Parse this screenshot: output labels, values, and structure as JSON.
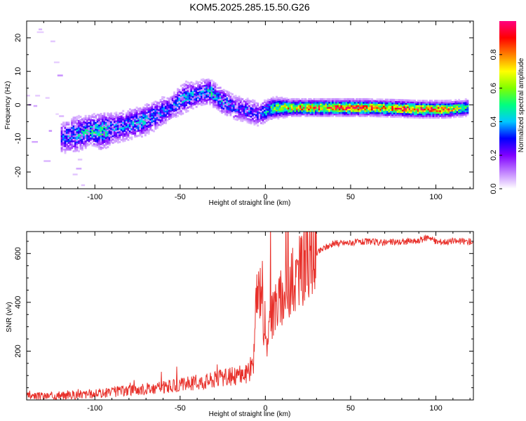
{
  "title": "KOM5.2025.285.15.50.G26",
  "chart_data": [
    {
      "type": "heatmap",
      "xlabel": "Height of straight line (km)",
      "ylabel": "Frequency (Hz)",
      "xlim": [
        -140,
        122
      ],
      "ylim": [
        -25,
        25
      ],
      "xticks": [
        -100,
        -50,
        0,
        50,
        100
      ],
      "yticks": [
        -20,
        -10,
        0,
        10,
        20
      ],
      "colorbar": {
        "label": "Normalized spectral amplitude",
        "range": [
          0,
          1
        ],
        "ticks": [
          "0.0",
          "0.2",
          "0.4",
          "0.6",
          "0.8"
        ],
        "tick_values": [
          0,
          0.2,
          0.4,
          0.6,
          0.8
        ],
        "colors": [
          "#ffffff",
          "#c080ff",
          "#8000ff",
          "#0000ff",
          "#00c8ff",
          "#00ff80",
          "#80ff00",
          "#ffff00",
          "#ff8000",
          "#ff0000",
          "#ff0080"
        ]
      },
      "ridge": [
        {
          "x": -120,
          "f": -10,
          "a": 0.35,
          "w": 6
        },
        {
          "x": -112,
          "f": -9,
          "a": 0.45,
          "w": 7
        },
        {
          "x": -104,
          "f": -8,
          "a": 0.5,
          "w": 6
        },
        {
          "x": -96,
          "f": -8,
          "a": 0.55,
          "w": 7
        },
        {
          "x": -88,
          "f": -7,
          "a": 0.4,
          "w": 6
        },
        {
          "x": -80,
          "f": -6,
          "a": 0.4,
          "w": 6
        },
        {
          "x": -72,
          "f": -5,
          "a": 0.45,
          "w": 6
        },
        {
          "x": -64,
          "f": -3,
          "a": 0.4,
          "w": 6
        },
        {
          "x": -56,
          "f": -1,
          "a": 0.35,
          "w": 5
        },
        {
          "x": -48,
          "f": 2,
          "a": 0.45,
          "w": 6
        },
        {
          "x": -40,
          "f": 3,
          "a": 0.4,
          "w": 5
        },
        {
          "x": -33,
          "f": 4,
          "a": 0.5,
          "w": 5
        },
        {
          "x": -26,
          "f": 1,
          "a": 0.45,
          "w": 5
        },
        {
          "x": -18,
          "f": -1,
          "a": 0.35,
          "w": 5
        },
        {
          "x": -10,
          "f": -2,
          "a": 0.35,
          "w": 5
        },
        {
          "x": -4,
          "f": -3,
          "a": 0.3,
          "w": 5
        },
        {
          "x": 4,
          "f": -1,
          "a": 0.6,
          "w": 4
        },
        {
          "x": 15,
          "f": -1,
          "a": 0.85,
          "w": 3
        },
        {
          "x": 30,
          "f": -1,
          "a": 0.9,
          "w": 3
        },
        {
          "x": 45,
          "f": -1,
          "a": 0.95,
          "w": 3
        },
        {
          "x": 60,
          "f": -1,
          "a": 0.9,
          "w": 3
        },
        {
          "x": 75,
          "f": -1.2,
          "a": 0.9,
          "w": 3
        },
        {
          "x": 90,
          "f": -1.5,
          "a": 0.95,
          "w": 3
        },
        {
          "x": 105,
          "f": -1.5,
          "a": 0.9,
          "w": 3
        },
        {
          "x": 118,
          "f": -1,
          "a": 0.6,
          "w": 3
        }
      ]
    },
    {
      "type": "line",
      "xlabel": "Height of straight line (km)",
      "ylabel": "SNR (v/v)",
      "xlim": [
        -140,
        122
      ],
      "ylim": [
        0,
        690
      ],
      "xticks": [
        -100,
        -50,
        0,
        50,
        100
      ],
      "yticks": [
        200,
        400,
        600
      ],
      "color": "#e8302a",
      "series": [
        {
          "name": "SNR",
          "x": [
            -140,
            -130,
            -120,
            -110,
            -100,
            -90,
            -80,
            -70,
            -60,
            -50,
            -40,
            -30,
            -20,
            -15,
            -10,
            -7,
            -5,
            -3,
            -2,
            -1,
            0,
            2,
            5,
            10,
            15,
            20,
            25,
            30,
            35,
            40,
            50,
            60,
            70,
            80,
            90,
            96,
            100,
            110,
            122
          ],
          "y": [
            15,
            15,
            18,
            22,
            25,
            32,
            40,
            45,
            52,
            60,
            72,
            85,
            95,
            105,
            110,
            160,
            430,
            460,
            520,
            300,
            200,
            300,
            380,
            420,
            470,
            520,
            570,
            600,
            625,
            640,
            645,
            648,
            645,
            648,
            650,
            670,
            648,
            650,
            650
          ]
        }
      ]
    }
  ]
}
